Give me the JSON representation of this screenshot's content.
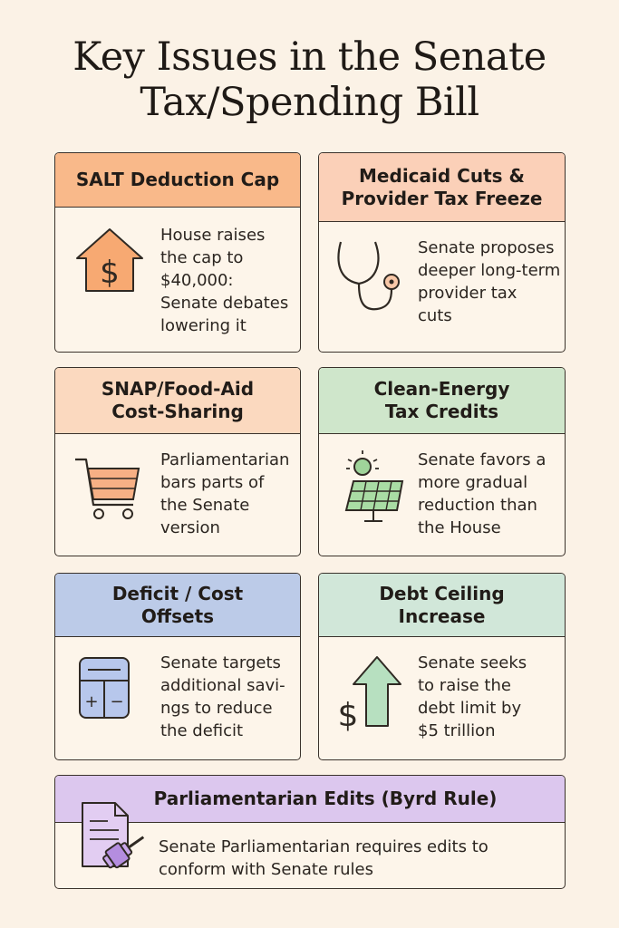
{
  "title": {
    "line1": "Key Issues in the Senate",
    "line2": "Tax/Spending Bill"
  },
  "cards": [
    {
      "heading": [
        "SALT Deduction Cap"
      ],
      "text": [
        "House raises",
        "the cap to",
        "$40,000:",
        "Senate debates",
        "lowering it"
      ],
      "header_color": "#f9b98a",
      "icon": "house-dollar-icon",
      "icon_glyph": "$"
    },
    {
      "heading": [
        "Medicaid Cuts &",
        "Provider Tax Freeze"
      ],
      "text": [
        "Senate proposes",
        "deeper long-term",
        "provider tax",
        "cuts"
      ],
      "header_color": "#fbd0b8",
      "icon": "stethoscope-icon"
    },
    {
      "heading": [
        "SNAP/Food-Aid",
        "Cost-Sharing"
      ],
      "text": [
        "Parliamentarian",
        "bars parts of",
        "the Senate",
        "version"
      ],
      "header_color": "#fbd9bf",
      "icon": "shopping-cart-icon"
    },
    {
      "heading": [
        "Clean-Energy",
        "Tax Credits"
      ],
      "text": [
        "Senate favors a",
        "more gradual",
        "reduction than",
        "the House"
      ],
      "header_color": "#cfe6cb",
      "icon": "solar-panel-icon"
    },
    {
      "heading": [
        "Deficit / Cost",
        "Offsets"
      ],
      "text": [
        "Senate targets",
        "additional savi-",
        "ngs to reduce",
        "the deficit"
      ],
      "header_color": "#bccbe8",
      "icon": "calculator-icon",
      "icon_glyphs": [
        "+",
        "−"
      ]
    },
    {
      "heading": [
        "Debt Ceiling",
        "Increase"
      ],
      "text": [
        "Senate seeks",
        "to raise the",
        "debt limit by",
        "$5 trillion"
      ],
      "header_color": "#d1e7d9",
      "icon": "dollar-up-arrow-icon",
      "icon_glyph": "$"
    },
    {
      "heading": [
        "Parliamentarian Edits (Byrd Rule)"
      ],
      "text": [
        "Senate Parliamentarian requires edits to",
        "conform with Senate rules"
      ],
      "header_color": "#dcc7ee",
      "icon": "document-gavel-icon"
    }
  ]
}
